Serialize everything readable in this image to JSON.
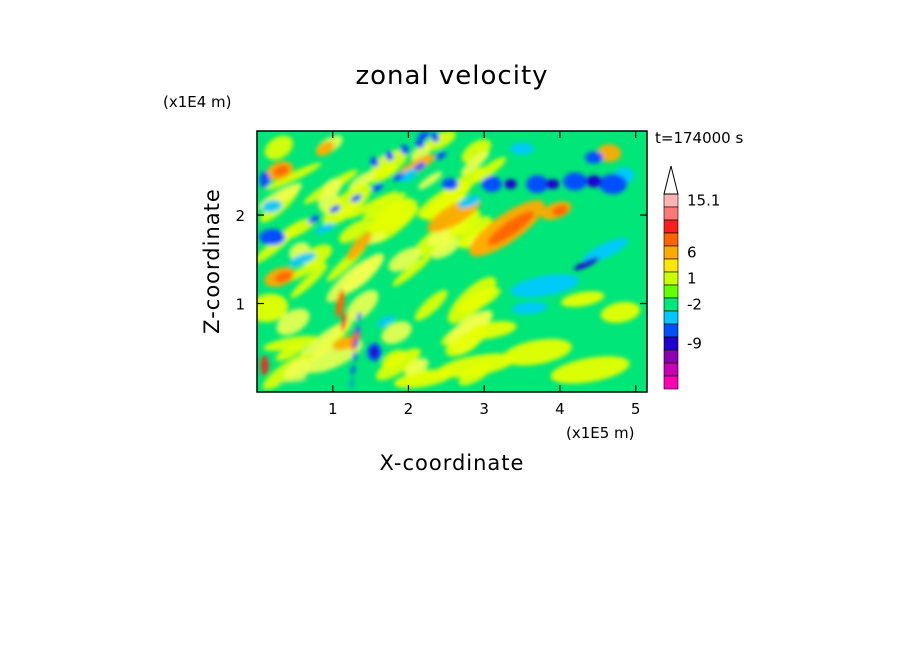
{
  "chart_data": {
    "type": "heatmap",
    "title": "zonal velocity",
    "xlabel": "X-coordinate",
    "ylabel": "Z-coordinate",
    "x_scale_label": "(x1E5 m)",
    "y_scale_label": "(x1E4 m)",
    "time_label": "t=174000 s",
    "xlim": [
      0,
      5.15
    ],
    "ylim": [
      0,
      2.95
    ],
    "x_ticks": [
      "1",
      "2",
      "3",
      "4",
      "5"
    ],
    "x_tick_values": [
      1,
      2,
      3,
      4,
      5
    ],
    "y_ticks": [
      "1",
      "2"
    ],
    "y_tick_values": [
      1,
      2
    ],
    "colorbar": {
      "tick_labels": [
        "15.1",
        "6",
        "1",
        "-2",
        "-9"
      ],
      "colors": [
        "#ff00b4",
        "#c800b4",
        "#8c00b4",
        "#1e00d2",
        "#0050ff",
        "#00c8ff",
        "#00e678",
        "#64ff00",
        "#c8ff00",
        "#ffe600",
        "#ffaa00",
        "#ff6400",
        "#ff1e1e",
        "#ff7878",
        "#ffb4b4"
      ]
    }
  }
}
